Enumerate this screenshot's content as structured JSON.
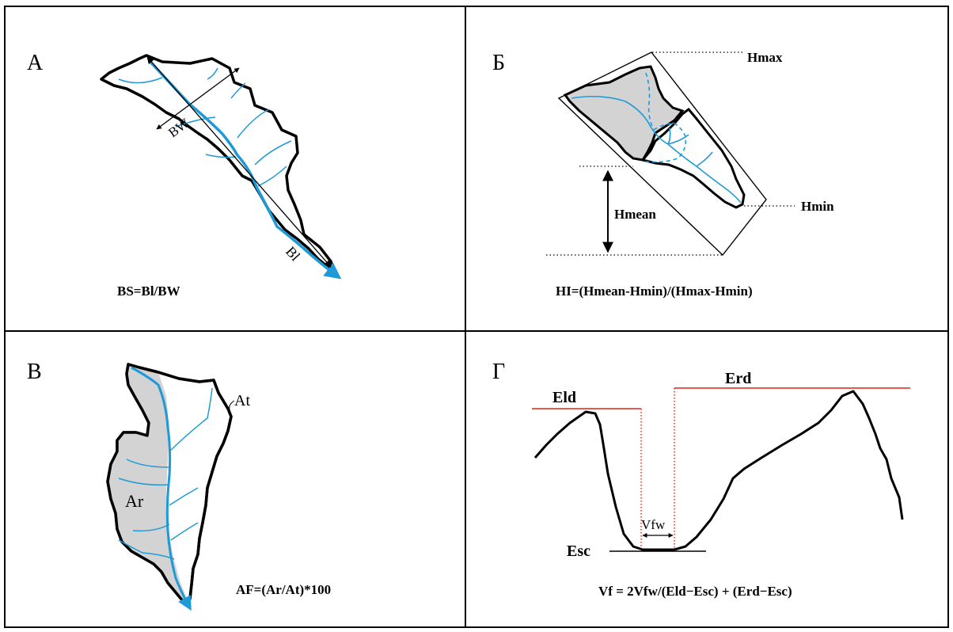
{
  "panel_a": {
    "letter": "А",
    "bw_label": "BW",
    "bl_label": "Bl",
    "formula": "BS=Bl/BW"
  },
  "panel_b": {
    "letter": "Б",
    "hmax_label": "Hmax",
    "hmin_label": "Hmin",
    "hmean_label": "Hmean",
    "formula": "HI=(Hmean-Hmin)/(Hmax-Hmin)"
  },
  "panel_v": {
    "letter": "В",
    "at_label": "At",
    "ar_label": "Ar",
    "formula": "AF=(Ar/At)*100"
  },
  "panel_g": {
    "letter": "Г",
    "eld_label": "Eld",
    "erd_label": "Erd",
    "vfw_label": "Vfw",
    "esc_label": "Esc",
    "formula": "Vf = 2Vfw/(Eld−Esc) + (Erd−Esc)"
  },
  "colors": {
    "stream": "#1f9ad6",
    "shade": "#d3d3d3",
    "redline": "#e0201b",
    "outline": "#000000"
  }
}
